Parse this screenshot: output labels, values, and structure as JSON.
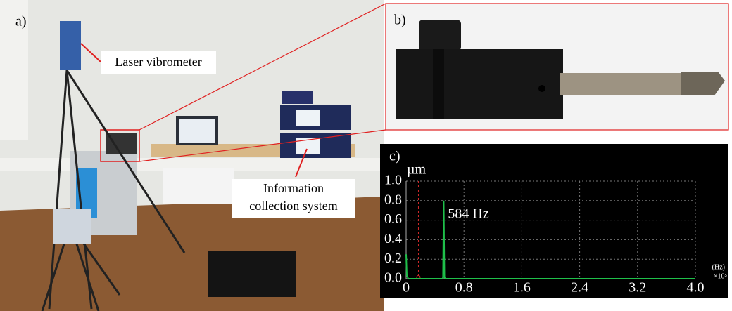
{
  "panel_a": {
    "label": "a)",
    "callouts": [
      {
        "lines": [
          "Laser vibrometer"
        ]
      },
      {
        "lines": [
          "Information",
          "collection system"
        ]
      }
    ]
  },
  "panel_b": {
    "label": "b)"
  },
  "chart_data": {
    "type": "line",
    "panel_label": "c)",
    "y_unit": "µm",
    "x_unit": "(Hz)",
    "x_multiplier": "×10⁵",
    "annotation": "584 Hz",
    "x": [
      0,
      0.01,
      0.03,
      0.5,
      0.51,
      0.52,
      0.53,
      0.55,
      4.0
    ],
    "series": [
      {
        "color": "#1fbf4a",
        "values": [
          0.25,
          0.03,
          0.0,
          0.0,
          0.01,
          0.8,
          0.01,
          0.0,
          0.0
        ]
      }
    ],
    "cursor": {
      "x": 0.17,
      "color": "#d42a2a"
    },
    "xlim": [
      0,
      4.0
    ],
    "ylim": [
      0,
      1.0
    ],
    "xticks": [
      0,
      0.8,
      1.6,
      2.4,
      3.2,
      {
        "value": 4.0,
        "label": "4.0"
      }
    ],
    "yticks": [
      {
        "value": 0,
        "label": "0.0"
      },
      0.2,
      0.4,
      0.6,
      0.8,
      {
        "value": 1.0,
        "label": "1.0"
      }
    ],
    "grid": true
  }
}
